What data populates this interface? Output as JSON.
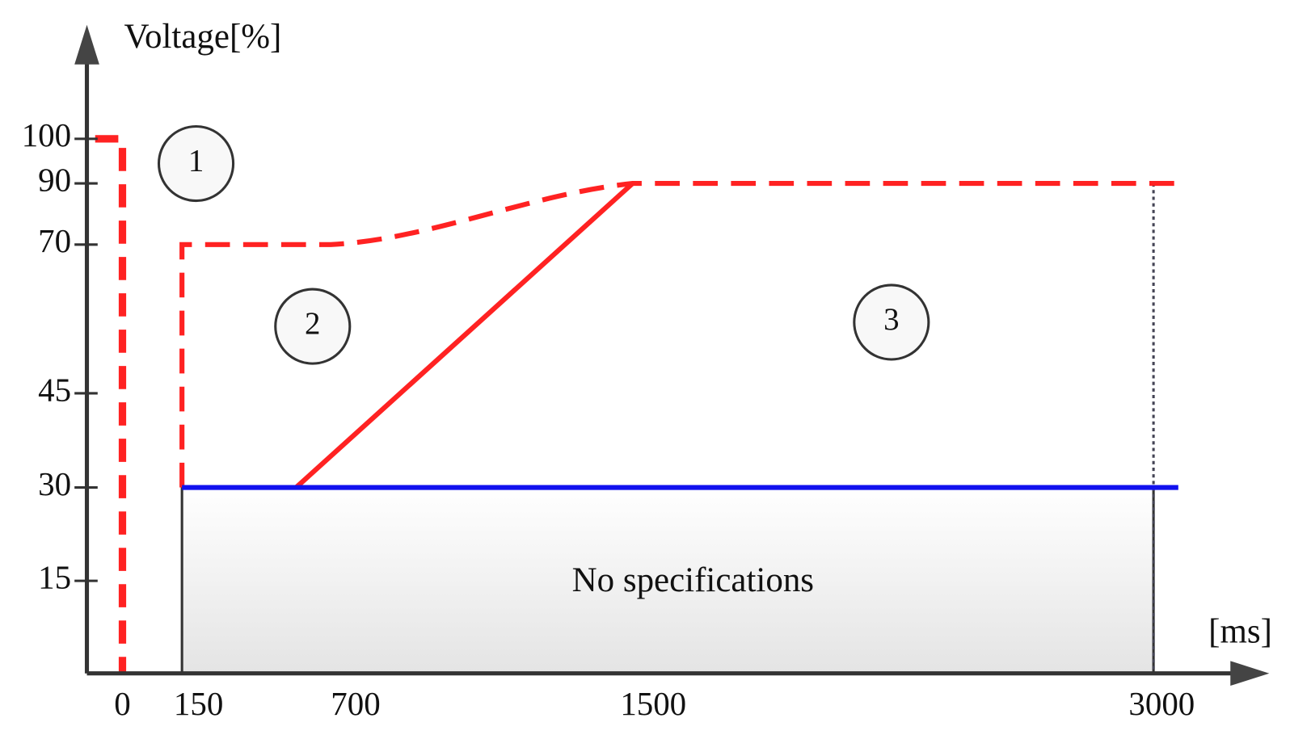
{
  "y_axis": {
    "label": "Voltage[%]",
    "ticks": [
      "100",
      "90",
      "70",
      "45",
      "30",
      "15"
    ]
  },
  "x_axis": {
    "label": "[ms]",
    "ticks": [
      "0",
      "150",
      "700",
      "1500",
      "3000"
    ]
  },
  "zones": [
    "1",
    "2",
    "3"
  ],
  "region_label": "No specifications"
}
